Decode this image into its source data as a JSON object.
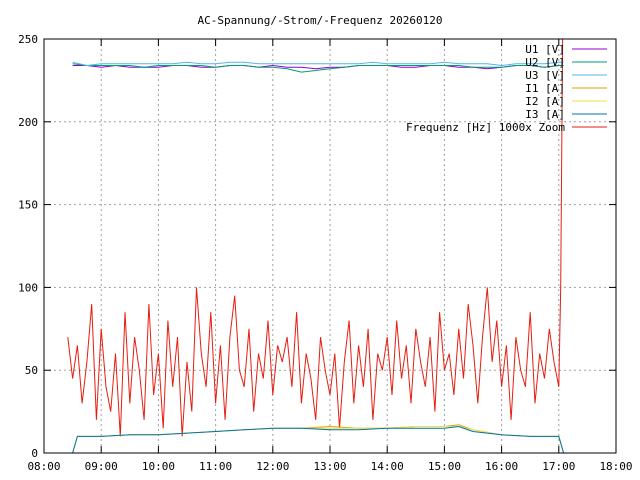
{
  "chart_data": {
    "type": "line",
    "title": "AC-Spannung/-Strom/-Frequenz 20260120",
    "xlabel": "",
    "ylabel": "",
    "x_ticks": [
      "08:00",
      "09:00",
      "10:00",
      "11:00",
      "12:00",
      "13:00",
      "14:00",
      "15:00",
      "16:00",
      "17:00",
      "18:00"
    ],
    "y_ticks": [
      0,
      50,
      100,
      150,
      200,
      250
    ],
    "xlim": [
      "08:00",
      "18:00"
    ],
    "ylim": [
      0,
      250
    ],
    "grid": true,
    "grid_style": "dotted",
    "legend_position": "top-right",
    "series": [
      {
        "name": "U1 [V]",
        "color": "#9400d3",
        "x": [
          "08:30",
          "08:45",
          "09:00",
          "09:15",
          "09:30",
          "09:45",
          "10:00",
          "10:15",
          "10:30",
          "10:45",
          "11:00",
          "11:15",
          "11:30",
          "11:45",
          "12:00",
          "12:15",
          "12:30",
          "12:45",
          "13:00",
          "13:15",
          "13:30",
          "13:45",
          "14:00",
          "14:15",
          "14:30",
          "14:45",
          "15:00",
          "15:15",
          "15:30",
          "15:45",
          "16:00",
          "16:15",
          "16:30",
          "16:45",
          "17:00",
          "17:05"
        ],
        "values": [
          234,
          234,
          233,
          234,
          233,
          233,
          233,
          234,
          234,
          233,
          233,
          234,
          234,
          233,
          234,
          233,
          233,
          232,
          233,
          233,
          234,
          234,
          234,
          233,
          233,
          234,
          234,
          233,
          233,
          232,
          233,
          234,
          234,
          233,
          234,
          234
        ]
      },
      {
        "name": "U2 [V]",
        "color": "#009e73",
        "x": [
          "08:30",
          "08:45",
          "09:00",
          "09:15",
          "09:30",
          "09:45",
          "10:00",
          "10:15",
          "10:30",
          "10:45",
          "11:00",
          "11:15",
          "11:30",
          "11:45",
          "12:00",
          "12:15",
          "12:30",
          "12:45",
          "13:00",
          "13:15",
          "13:30",
          "13:45",
          "14:00",
          "14:15",
          "14:30",
          "14:45",
          "15:00",
          "15:15",
          "15:30",
          "15:45",
          "16:00",
          "16:15",
          "16:30",
          "16:45",
          "17:00",
          "17:05"
        ],
        "values": [
          235,
          234,
          234,
          234,
          234,
          233,
          234,
          234,
          234,
          234,
          233,
          234,
          234,
          233,
          233,
          232,
          230,
          231,
          232,
          233,
          234,
          234,
          234,
          234,
          234,
          234,
          234,
          234,
          233,
          233,
          233,
          234,
          234,
          233,
          234,
          234
        ]
      },
      {
        "name": "U3 [V]",
        "color": "#56b4e9",
        "x": [
          "08:30",
          "08:45",
          "09:00",
          "09:15",
          "09:30",
          "09:45",
          "10:00",
          "10:15",
          "10:30",
          "10:45",
          "11:00",
          "11:15",
          "11:30",
          "11:45",
          "12:00",
          "12:15",
          "12:30",
          "12:45",
          "13:00",
          "13:15",
          "13:30",
          "13:45",
          "14:00",
          "14:15",
          "14:30",
          "14:45",
          "15:00",
          "15:15",
          "15:30",
          "15:45",
          "16:00",
          "16:15",
          "16:30",
          "16:45",
          "17:00",
          "17:05"
        ],
        "values": [
          236,
          234,
          235,
          235,
          235,
          235,
          235,
          235,
          236,
          235,
          235,
          236,
          236,
          235,
          235,
          235,
          235,
          235,
          235,
          235,
          235,
          236,
          235,
          235,
          235,
          235,
          236,
          235,
          235,
          235,
          234,
          235,
          235,
          235,
          236,
          236
        ]
      },
      {
        "name": "I1 [A]",
        "color": "#e69f00",
        "x": [
          "08:30",
          "08:35",
          "09:00",
          "09:30",
          "10:00",
          "10:30",
          "11:00",
          "11:30",
          "12:00",
          "12:30",
          "13:00",
          "13:30",
          "14:00",
          "14:30",
          "15:00",
          "15:15",
          "15:30",
          "16:00",
          "16:30",
          "17:00",
          "17:05"
        ],
        "values": [
          0,
          10,
          10,
          11,
          11,
          12,
          13,
          14,
          15,
          15,
          16,
          15,
          15,
          16,
          16,
          17,
          14,
          11,
          10,
          10,
          0
        ]
      },
      {
        "name": "I2 [A]",
        "color": "#f0e442",
        "x": [
          "08:30",
          "08:35",
          "09:00",
          "09:30",
          "10:00",
          "10:30",
          "11:00",
          "11:30",
          "12:00",
          "12:30",
          "13:00",
          "13:30",
          "14:00",
          "14:30",
          "15:00",
          "15:15",
          "15:30",
          "16:00",
          "16:30",
          "17:00",
          "17:05"
        ],
        "values": [
          0,
          10,
          10,
          11,
          11,
          12,
          13,
          14,
          15,
          15,
          15,
          15,
          15,
          16,
          16,
          16,
          14,
          11,
          10,
          10,
          0
        ]
      },
      {
        "name": "I3 [A]",
        "color": "#0072b2",
        "x": [
          "08:30",
          "08:35",
          "09:00",
          "09:30",
          "10:00",
          "10:30",
          "11:00",
          "11:30",
          "12:00",
          "12:30",
          "13:00",
          "13:30",
          "14:00",
          "14:30",
          "15:00",
          "15:15",
          "15:30",
          "16:00",
          "16:30",
          "17:00",
          "17:05"
        ],
        "values": [
          0,
          10,
          10,
          11,
          11,
          12,
          13,
          14,
          15,
          15,
          14,
          14,
          15,
          15,
          15,
          16,
          13,
          11,
          10,
          10,
          0
        ]
      },
      {
        "name": "Frequenz [Hz] 1000x Zoom",
        "color": "#e51e10",
        "x": [
          "08:25",
          "08:30",
          "08:35",
          "08:40",
          "08:45",
          "08:50",
          "08:55",
          "09:00",
          "09:05",
          "09:10",
          "09:15",
          "09:20",
          "09:25",
          "09:30",
          "09:35",
          "09:40",
          "09:45",
          "09:50",
          "09:55",
          "10:00",
          "10:05",
          "10:10",
          "10:15",
          "10:20",
          "10:25",
          "10:30",
          "10:35",
          "10:40",
          "10:45",
          "10:50",
          "10:55",
          "11:00",
          "11:05",
          "11:10",
          "11:15",
          "11:20",
          "11:25",
          "11:30",
          "11:35",
          "11:40",
          "11:45",
          "11:50",
          "11:55",
          "12:00",
          "12:05",
          "12:10",
          "12:15",
          "12:20",
          "12:25",
          "12:30",
          "12:35",
          "12:40",
          "12:45",
          "12:50",
          "12:55",
          "13:00",
          "13:05",
          "13:10",
          "13:15",
          "13:20",
          "13:25",
          "13:30",
          "13:35",
          "13:40",
          "13:45",
          "13:50",
          "13:55",
          "14:00",
          "14:05",
          "14:10",
          "14:15",
          "14:20",
          "14:25",
          "14:30",
          "14:35",
          "14:40",
          "14:45",
          "14:50",
          "14:55",
          "15:00",
          "15:05",
          "15:10",
          "15:15",
          "15:20",
          "15:25",
          "15:30",
          "15:35",
          "15:40",
          "15:45",
          "15:50",
          "15:55",
          "16:00",
          "16:05",
          "16:10",
          "16:15",
          "16:20",
          "16:25",
          "16:30",
          "16:35",
          "16:40",
          "16:45",
          "16:50",
          "16:55",
          "17:00",
          "17:02",
          "17:04"
        ],
        "values": [
          70,
          45,
          65,
          30,
          55,
          90,
          20,
          75,
          40,
          25,
          60,
          10,
          85,
          30,
          70,
          50,
          20,
          90,
          35,
          60,
          15,
          80,
          40,
          70,
          10,
          55,
          25,
          100,
          60,
          40,
          85,
          30,
          65,
          20,
          70,
          95,
          50,
          40,
          75,
          25,
          60,
          45,
          80,
          35,
          65,
          55,
          70,
          40,
          85,
          30,
          60,
          45,
          20,
          70,
          50,
          35,
          60,
          15,
          55,
          80,
          30,
          65,
          40,
          75,
          20,
          60,
          50,
          70,
          35,
          80,
          45,
          65,
          30,
          75,
          55,
          40,
          70,
          25,
          85,
          50,
          60,
          35,
          75,
          45,
          90,
          65,
          30,
          70,
          100,
          55,
          80,
          40,
          65,
          20,
          70,
          50,
          40,
          85,
          30,
          60,
          45,
          75,
          55,
          40,
          100,
          250
        ]
      }
    ]
  }
}
